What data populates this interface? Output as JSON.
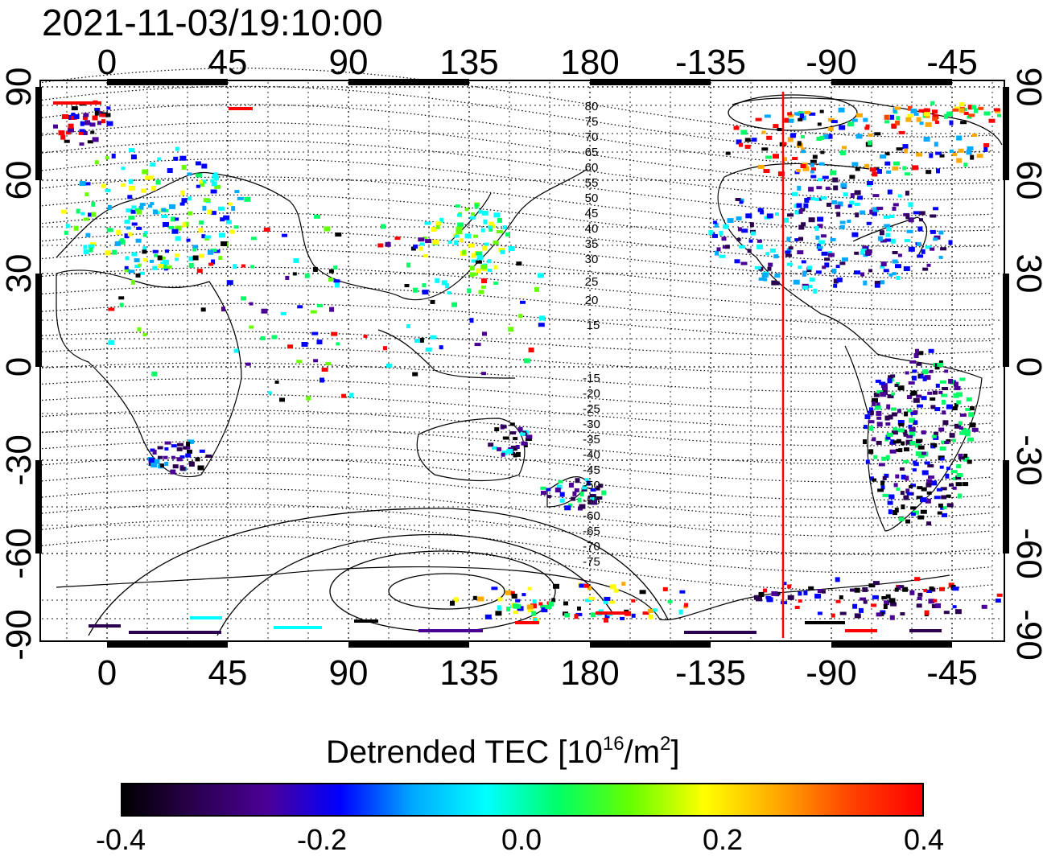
{
  "title": "2021-11-03/19:10:00",
  "map": {
    "lon_ticks": [
      "0",
      "45",
      "90",
      "135",
      "180",
      "-135",
      "-90",
      "-45"
    ],
    "lat_ticks": [
      "90",
      "60",
      "30",
      "0",
      "-30",
      "-60",
      "-90"
    ],
    "contour_labels_north": [
      "80",
      "75",
      "70",
      "65",
      "60",
      "55",
      "50",
      "45",
      "40",
      "35",
      "30",
      "25",
      "20",
      "15"
    ],
    "contour_labels_south": [
      "-15",
      "-20",
      "-25",
      "-30",
      "-35",
      "-40",
      "-45",
      "-50",
      "-55",
      "-60",
      "-65",
      "-70",
      "-75"
    ],
    "terminator_color": "#ff0000",
    "frame_color": "#000000"
  },
  "colorbar": {
    "label": "Detrended TEC  [10",
    "label_sup": "16",
    "label_mid": "/m",
    "label_sup2": "2",
    "label_end": "]",
    "ticks": [
      "-0.4",
      "-0.2",
      "0.0",
      "0.2",
      "0.4"
    ],
    "colors": [
      "#000000",
      "#2a0050",
      "#4b0096",
      "#0000ff",
      "#00aaff",
      "#00ffff",
      "#00ff66",
      "#66ff00",
      "#ffff00",
      "#ffaa00",
      "#ff4400",
      "#ff0000"
    ]
  }
}
